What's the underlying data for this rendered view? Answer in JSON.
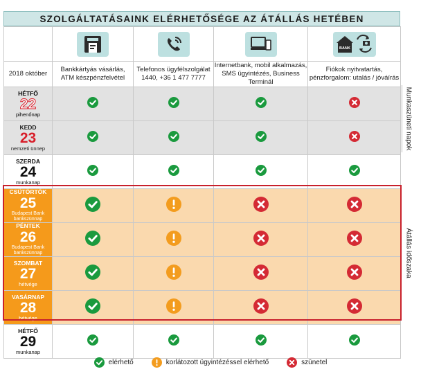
{
  "title": "SZOLGÁLTATÁSAINK ELÉRHETŐSÉGE AZ ÁTÁLLÁS HETÉBEN",
  "period_label": "2018 október",
  "columns": [
    {
      "icon": "card-atm-icon",
      "label_line1": "Bankkártyás vásárlás,",
      "label_line2": "ATM készpénzfelvétel"
    },
    {
      "icon": "phone-icon",
      "label_line1": "Telefonos ügyfélszolgálat",
      "label_line2": "1440, +36 1 477 7777"
    },
    {
      "icon": "computer-mobile-icon",
      "label_line1": "Internetbank, mobil alkalmazás,",
      "label_line2": "SMS ügyintézés, Business Terminál"
    },
    {
      "icon": "bank-branch-icon",
      "label_line1": "Fiókok nyitvatartás,",
      "label_line2": "pénzforgalom: utalás / jóváírás"
    }
  ],
  "bank_icon_text": "BANK",
  "days": [
    {
      "name": "HÉTFŐ",
      "number": "22",
      "type": "pihenőnap",
      "status": [
        "ok",
        "ok",
        "ok",
        "closed"
      ]
    },
    {
      "name": "KEDD",
      "number": "23",
      "type": "nemzeti ünnep",
      "status": [
        "ok",
        "ok",
        "ok",
        "closed"
      ]
    },
    {
      "name": "SZERDA",
      "number": "24",
      "type": "munkanap",
      "status": [
        "ok",
        "ok",
        "ok",
        "ok"
      ]
    },
    {
      "name": "CSÜTÖRTÖK",
      "number": "25",
      "type": "Budapest Bank",
      "type2": "bankszünnap",
      "status": [
        "ok",
        "limited",
        "closed",
        "closed"
      ]
    },
    {
      "name": "PÉNTEK",
      "number": "26",
      "type": "Budapest Bank",
      "type2": "bankszünnap",
      "status": [
        "ok",
        "limited",
        "closed",
        "closed"
      ]
    },
    {
      "name": "SZOMBAT",
      "number": "27",
      "type": "hétvége",
      "status": [
        "ok",
        "limited",
        "closed",
        "closed"
      ]
    },
    {
      "name": "VASÁRNAP",
      "number": "28",
      "type": "hétvége",
      "status": [
        "ok",
        "limited",
        "closed",
        "closed"
      ]
    },
    {
      "name": "HÉTFŐ",
      "number": "29",
      "type": "munkanap",
      "status": [
        "ok",
        "ok",
        "ok",
        "ok"
      ]
    }
  ],
  "side_labels": {
    "holidays": "Munkaszüneti napok",
    "transition": "Átállás időszaka"
  },
  "legend": {
    "ok": "elérhető",
    "limited": "korlátozott ügyintézéssel elérhető",
    "closed": "szünetel"
  },
  "colors": {
    "ok": "#1a9a3e",
    "limited": "#f39c1e",
    "closed": "#d42a34",
    "accent_orange": "#f59a1b",
    "frame_red": "#c8202c",
    "header_teal": "#cfe6e6"
  }
}
